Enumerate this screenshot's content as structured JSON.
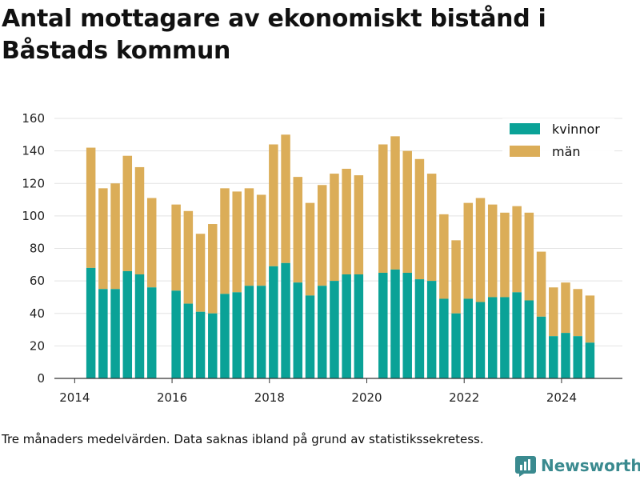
{
  "title": "Antal mottagare av ekonomiskt bistånd i Båstads kommun",
  "caption": "Tre månaders medelvärden. Data saknas ibland på grund av statistikssekretess.",
  "brand": {
    "name": "Newsworthy"
  },
  "colors": {
    "kvinnor": "#0aa297",
    "man": "#dbad58",
    "grid": "#e3e3e3",
    "axis": "#333333"
  },
  "chart_data": {
    "type": "bar",
    "stacked": true,
    "x_axis": {
      "ticks": [
        "2014",
        "2016",
        "2018",
        "2020",
        "2022",
        "2024"
      ],
      "range": [
        "2013-08",
        "2025-04"
      ]
    },
    "y_axis": {
      "ticks": [
        0,
        20,
        40,
        60,
        80,
        100,
        120,
        140,
        160
      ],
      "ylim": [
        0,
        160
      ]
    },
    "grid": true,
    "legend": {
      "position": "top-right",
      "entries": [
        "kvinnor",
        "män"
      ]
    },
    "x": [
      "2014-05",
      "2014-08",
      "2014-11",
      "2015-02",
      "2015-05",
      "2015-08",
      "2016-02",
      "2016-05",
      "2016-08",
      "2016-11",
      "2017-02",
      "2017-05",
      "2017-08",
      "2017-11",
      "2018-02",
      "2018-05",
      "2018-08",
      "2018-11",
      "2019-02",
      "2019-05",
      "2019-08",
      "2019-11",
      "2020-05",
      "2020-08",
      "2020-11",
      "2021-02",
      "2021-05",
      "2021-08",
      "2021-11",
      "2022-02",
      "2022-05",
      "2022-08",
      "2022-11",
      "2023-02",
      "2023-05",
      "2023-08",
      "2023-11",
      "2024-02",
      "2024-05",
      "2024-08"
    ],
    "series": [
      {
        "name": "kvinnor",
        "values": [
          68,
          55,
          55,
          66,
          64,
          56,
          54,
          46,
          41,
          40,
          52,
          53,
          57,
          57,
          69,
          71,
          59,
          51,
          57,
          60,
          64,
          64,
          65,
          67,
          65,
          61,
          60,
          49,
          40,
          49,
          47,
          50,
          50,
          53,
          48,
          38,
          26,
          28,
          26,
          22
        ]
      },
      {
        "name": "män",
        "values": [
          74,
          62,
          65,
          71,
          66,
          55,
          53,
          57,
          48,
          55,
          65,
          62,
          60,
          56,
          75,
          79,
          65,
          57,
          62,
          66,
          65,
          61,
          79,
          82,
          75,
          74,
          66,
          52,
          45,
          59,
          64,
          57,
          52,
          53,
          54,
          40,
          30,
          31,
          29,
          29
        ]
      }
    ]
  }
}
